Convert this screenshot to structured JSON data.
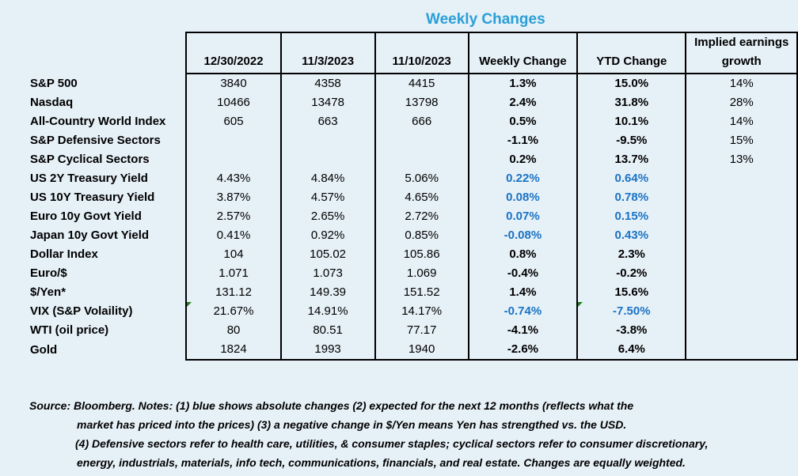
{
  "title": "Weekly Changes",
  "headers": [
    "",
    "12/30/2022",
    "11/3/2023",
    "11/10/2023",
    "Weekly Change",
    "YTD Change",
    "Implied earnings growth"
  ],
  "rows": [
    {
      "label": "S&P 500",
      "c1": "3840",
      "c2": "4358",
      "c3": "4415",
      "weekly": "1.3%",
      "ytd": "15.0%",
      "implied": "14%",
      "blue": false
    },
    {
      "label": "Nasdaq",
      "c1": "10466",
      "c2": "13478",
      "c3": "13798",
      "weekly": "2.4%",
      "ytd": "31.8%",
      "implied": "28%",
      "blue": false
    },
    {
      "label": "All-Country World Index",
      "c1": "605",
      "c2": "663",
      "c3": "666",
      "weekly": "0.5%",
      "ytd": "10.1%",
      "implied": "14%",
      "blue": false
    },
    {
      "label": "S&P Defensive Sectors",
      "c1": "",
      "c2": "",
      "c3": "",
      "weekly": "-1.1%",
      "ytd": "-9.5%",
      "implied": "15%",
      "blue": false
    },
    {
      "label": "S&P Cyclical Sectors",
      "c1": "",
      "c2": "",
      "c3": "",
      "weekly": "0.2%",
      "ytd": "13.7%",
      "implied": "13%",
      "blue": false
    },
    {
      "label": "US 2Y Treasury Yield",
      "c1": "4.43%",
      "c2": "4.84%",
      "c3": "5.06%",
      "weekly": "0.22%",
      "ytd": "0.64%",
      "implied": "",
      "blue": true
    },
    {
      "label": "US 10Y Treasury Yield",
      "c1": "3.87%",
      "c2": "4.57%",
      "c3": "4.65%",
      "weekly": "0.08%",
      "ytd": "0.78%",
      "implied": "",
      "blue": true
    },
    {
      "label": "Euro 10y Govt Yield",
      "c1": "2.57%",
      "c2": "2.65%",
      "c3": "2.72%",
      "weekly": "0.07%",
      "ytd": "0.15%",
      "implied": "",
      "blue": true
    },
    {
      "label": "Japan 10y Govt Yield",
      "c1": "0.41%",
      "c2": "0.92%",
      "c3": "0.85%",
      "weekly": "-0.08%",
      "ytd": "0.43%",
      "implied": "",
      "blue": true
    },
    {
      "label": "Dollar Index",
      "c1": "104",
      "c2": "105.02",
      "c3": "105.86",
      "weekly": "0.8%",
      "ytd": "2.3%",
      "implied": "",
      "blue": false
    },
    {
      "label": "Euro/$",
      "c1": "1.071",
      "c2": "1.073",
      "c3": "1.069",
      "weekly": "-0.4%",
      "ytd": "-0.2%",
      "implied": "",
      "blue": false
    },
    {
      "label": "$/Yen*",
      "c1": "131.12",
      "c2": "149.39",
      "c3": "151.52",
      "weekly": "1.4%",
      "ytd": "15.6%",
      "implied": "",
      "blue": false
    },
    {
      "label": "VIX (S&P Volaility)",
      "c1": "21.67%",
      "c2": "14.91%",
      "c3": "14.17%",
      "weekly": "-0.74%",
      "ytd": "-7.50%",
      "implied": "",
      "blue": true
    },
    {
      "label": "WTI (oil price)",
      "c1": "80",
      "c2": "80.51",
      "c3": "77.17",
      "weekly": "-4.1%",
      "ytd": "-3.8%",
      "implied": "",
      "blue": false
    },
    {
      "label": "Gold",
      "c1": "1824",
      "c2": "1993",
      "c3": "1940",
      "weekly": "-2.6%",
      "ytd": "6.4%",
      "implied": "",
      "blue": false
    }
  ],
  "notes": [
    "Source: Bloomberg. Notes: (1) blue shows absolute changes (2) expected for the next 12 months (reflects what the",
    "market has priced into the prices) (3) a negative change in $/Yen means Yen has strengthed vs. the USD.",
    "(4) Defensive sectors refer to health care, utilities, & consumer staples; cyclical sectors refer to consumer discretionary,",
    "energy, industrials, materials, info tech, communications, financials, and real estate. Changes are equally weighted."
  ],
  "colors": {
    "title": "#2a9fd8",
    "blue_values": "#1a73c4",
    "background": "#e6f0f7"
  }
}
